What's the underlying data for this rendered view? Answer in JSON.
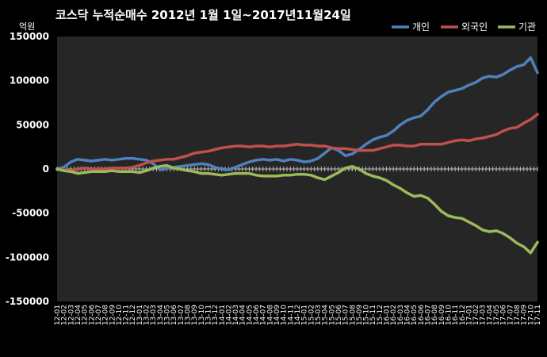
{
  "chart_data": {
    "type": "line",
    "title": "코스닥 누적순매수 2012년 1월 1일~2017년11월24일",
    "unit_label": "억원",
    "ylim": [
      -150000,
      150000
    ],
    "y_ticks": [
      150000,
      100000,
      50000,
      0,
      -50000,
      -100000,
      -150000
    ],
    "y_tick_labels": [
      "150000",
      "100000",
      "50000",
      "0",
      "-50000",
      "-100000",
      "-150000"
    ],
    "grid": false,
    "legend_position": "top-right",
    "x_tick_labels": [
      "12-01",
      "12-02",
      "12-03",
      "12-04",
      "12-05",
      "12-06",
      "12-07",
      "12-08",
      "12-09",
      "12-10",
      "12-11",
      "12-12",
      "13-01",
      "13-02",
      "13-03",
      "13-04",
      "13-05",
      "13-06",
      "13-07",
      "13-08",
      "13-09",
      "13-10",
      "13-11",
      "13-12",
      "14-01",
      "14-02",
      "14-03",
      "14-04",
      "14-05",
      "14-06",
      "14-07",
      "14-08",
      "14-09",
      "14-10",
      "14-11",
      "14-12",
      "15-01",
      "15-02",
      "15-03",
      "15-04",
      "15-05",
      "15-06",
      "15-07",
      "15-08",
      "15-09",
      "15-10",
      "15-11",
      "15-12",
      "16-01",
      "16-02",
      "16-03",
      "16-04",
      "16-05",
      "16-06",
      "16-07",
      "16-08",
      "16-09",
      "16-10",
      "16-11",
      "16-12",
      "17-01",
      "17-02",
      "17-03",
      "17-04",
      "17-05",
      "17-06",
      "17-07",
      "17-08",
      "17-09",
      "17-10",
      "17-11"
    ],
    "series": [
      {
        "name": "개인",
        "color": "#4f81bd",
        "values": [
          0,
          2000,
          8000,
          11000,
          10000,
          9000,
          10000,
          11000,
          10000,
          11000,
          12000,
          12000,
          11000,
          10000,
          6000,
          -1000,
          1000,
          2000,
          3000,
          4000,
          5000,
          6000,
          5000,
          2000,
          0,
          -1000,
          2000,
          5000,
          8000,
          10000,
          11000,
          10000,
          11000,
          9000,
          11000,
          10000,
          8000,
          9000,
          12000,
          18000,
          24000,
          21000,
          15000,
          17000,
          22000,
          28000,
          33000,
          36000,
          38000,
          43000,
          50000,
          55000,
          58000,
          60000,
          67000,
          76000,
          82000,
          87000,
          89000,
          91000,
          95000,
          98000,
          103000,
          105000,
          104000,
          107000,
          112000,
          116000,
          118000,
          126000,
          109000
        ]
      },
      {
        "name": "외국인",
        "color": "#c0504d",
        "values": [
          0,
          -1000,
          -2000,
          0,
          1000,
          0,
          0,
          0,
          1000,
          1000,
          1000,
          2000,
          4000,
          7000,
          9000,
          10000,
          11000,
          11000,
          13000,
          15000,
          18000,
          19000,
          20000,
          22000,
          24000,
          25000,
          26000,
          26000,
          25000,
          26000,
          26000,
          25000,
          26000,
          26000,
          27000,
          28000,
          27000,
          27000,
          26000,
          26000,
          24000,
          23000,
          23000,
          22000,
          21000,
          21000,
          21000,
          23000,
          25000,
          27000,
          27000,
          26000,
          26000,
          28000,
          28000,
          28000,
          28000,
          30000,
          32000,
          33000,
          32000,
          34000,
          35000,
          37000,
          39000,
          43000,
          46000,
          47000,
          52000,
          56000,
          62000
        ]
      },
      {
        "name": "기관",
        "color": "#9bbb59",
        "values": [
          0,
          -2000,
          -3000,
          -5000,
          -4000,
          -3000,
          -3000,
          -3000,
          -2000,
          -3000,
          -3000,
          -3000,
          -4000,
          -2000,
          1000,
          3000,
          4000,
          1000,
          0,
          -2000,
          -3000,
          -5000,
          -5000,
          -6000,
          -7000,
          -6000,
          -5000,
          -5000,
          -5000,
          -7000,
          -8000,
          -8000,
          -8000,
          -7000,
          -7000,
          -6000,
          -6000,
          -7000,
          -10000,
          -12000,
          -8000,
          -4000,
          1000,
          3000,
          0,
          -5000,
          -8000,
          -10000,
          -13000,
          -18000,
          -22000,
          -27000,
          -31000,
          -30000,
          -33000,
          -40000,
          -48000,
          -53000,
          -55000,
          -56000,
          -60000,
          -64000,
          -69000,
          -71000,
          -70000,
          -73000,
          -78000,
          -84000,
          -88000,
          -95000,
          -83000
        ]
      }
    ]
  }
}
